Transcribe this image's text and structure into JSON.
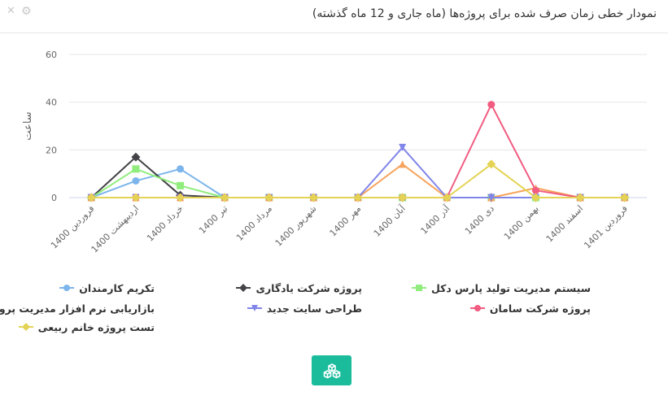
{
  "header": {
    "title": "نمودار خطی زمان صرف شده برای پروژه‌ها (ماه جاری و 12 ماه گذشته)",
    "close_icon": "close-icon",
    "gear_icon": "gear-icon"
  },
  "action_button": {
    "icon": "cubes-icon",
    "color": "#1abc9c"
  },
  "chart_data": {
    "type": "line",
    "ylabel": "ساعت",
    "xlabel": "",
    "ylim": [
      0,
      60
    ],
    "yticks": [
      "0",
      "20",
      "40",
      "60"
    ],
    "grid": true,
    "legend_placement": "bottom",
    "categories": [
      "فروردین 1400",
      "اردیبهشت 1400",
      "خرداد 1400",
      "تیر 1400",
      "مرداد 1400",
      "شهریور 1400",
      "مهر 1400",
      "آبان 1400",
      "آذر 1400",
      "دی 1400",
      "بهمن 1400",
      "اسفند 1400",
      "فروردین 1401"
    ],
    "series": [
      {
        "name": "تکریم کارمندان",
        "color": "#7cb5ec",
        "marker": "circle",
        "values": [
          0,
          7,
          12,
          0,
          0,
          0,
          0,
          0,
          0,
          0,
          0,
          0,
          0
        ]
      },
      {
        "name": "پروژه شرکت یادگاری",
        "color": "#434348",
        "marker": "diamond",
        "values": [
          0,
          17,
          1,
          0,
          0,
          0,
          0,
          0,
          0,
          0,
          0,
          0,
          0
        ]
      },
      {
        "name": "سیستم مدیریت تولید پارس دکل",
        "color": "#90ed7d",
        "marker": "square",
        "values": [
          0,
          12,
          5,
          0,
          0,
          0,
          0,
          0,
          0,
          0,
          0,
          0,
          0
        ]
      },
      {
        "name": "بازاریابی نرم افزار مدیریت پروژه",
        "color": "#f7a35c",
        "marker": "triangle",
        "values": [
          0,
          0,
          0,
          0,
          0,
          0,
          0,
          14,
          0,
          0,
          4,
          0,
          0
        ]
      },
      {
        "name": "طراحی سایت جدید",
        "color": "#8085e9",
        "marker": "triangle-down",
        "values": [
          0,
          0,
          0,
          0,
          0,
          0,
          0,
          21,
          0,
          0,
          0,
          0,
          0
        ]
      },
      {
        "name": "پروژه شرکت سامان",
        "color": "#f15c80",
        "marker": "circle",
        "values": [
          0,
          0,
          0,
          0,
          0,
          0,
          0,
          0,
          0,
          39,
          3,
          0,
          0
        ]
      },
      {
        "name": "تست پروژه خانم ربیعی",
        "color": "#e4d354",
        "marker": "diamond",
        "values": [
          0,
          0,
          0,
          0,
          0,
          0,
          0,
          0,
          0,
          14,
          0,
          0,
          0
        ]
      }
    ]
  }
}
